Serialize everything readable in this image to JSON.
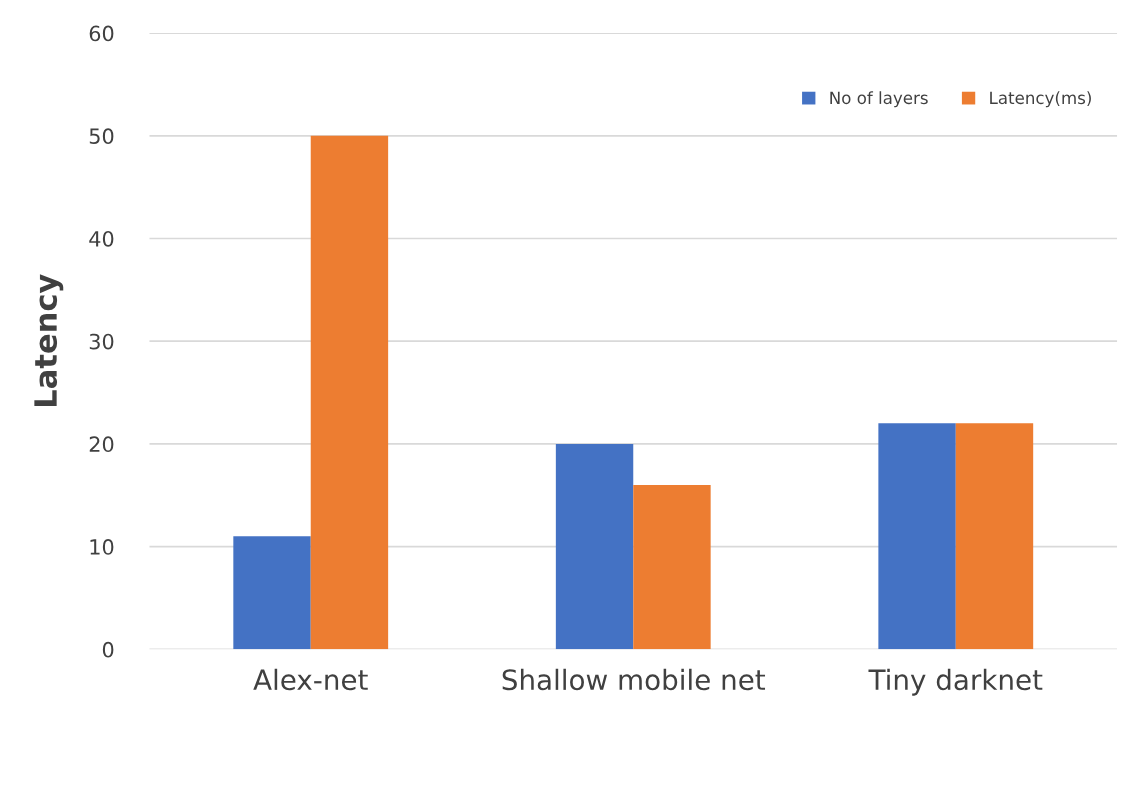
{
  "chart_data": {
    "type": "bar",
    "ylabel": "Latency",
    "categories": [
      "Alex-net",
      "Shallow mobile net",
      "Tiny darknet"
    ],
    "series": [
      {
        "name": "No of layers",
        "color": "#4472c4",
        "values": [
          11,
          20,
          22
        ]
      },
      {
        "name": "Latency(ms)",
        "color": "#ed7d31",
        "values": [
          50,
          16,
          22
        ]
      }
    ],
    "ylim": [
      0,
      60
    ],
    "yticks": [
      0,
      10,
      20,
      30,
      40,
      50,
      60
    ],
    "grid": "y",
    "legend": "top right"
  }
}
